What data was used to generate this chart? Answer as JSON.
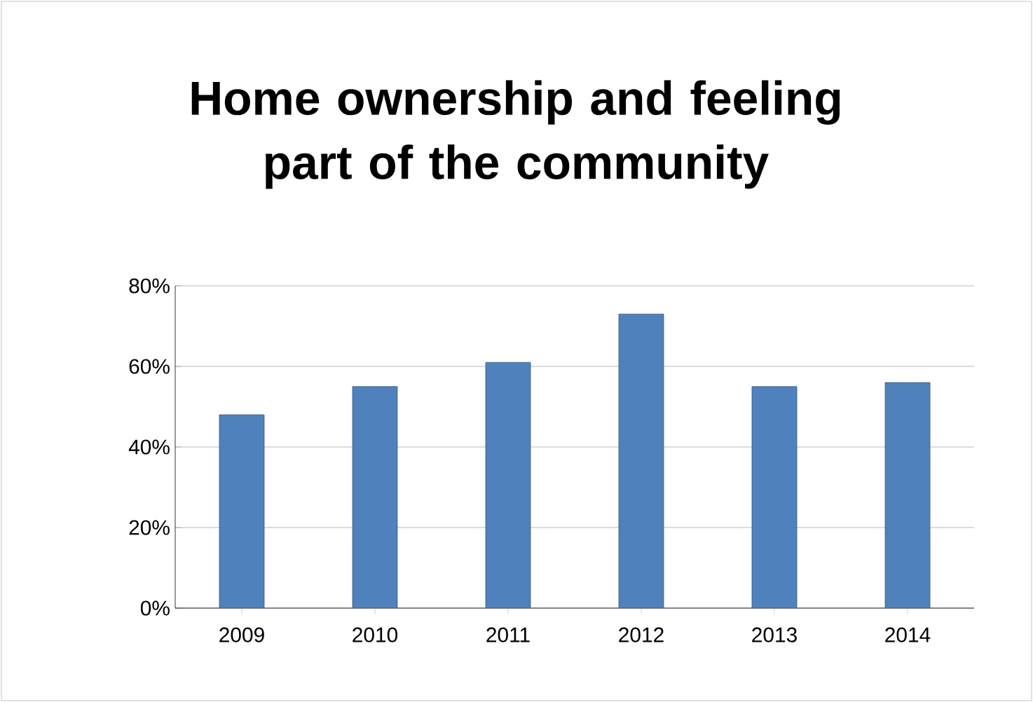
{
  "chart_data": {
    "type": "bar",
    "title": "Home ownership and feeling part of the community",
    "categories": [
      "2009",
      "2010",
      "2011",
      "2012",
      "2013",
      "2014"
    ],
    "values": [
      48,
      55,
      61,
      73,
      55,
      56
    ],
    "color": "#4f81bd",
    "ylim": [
      0,
      80
    ],
    "yticks": [
      {
        "value": 0,
        "label": "0%"
      },
      {
        "value": 20,
        "label": "20%"
      },
      {
        "value": 40,
        "label": "40%"
      },
      {
        "value": 60,
        "label": "60%"
      },
      {
        "value": 80,
        "label": "80%"
      }
    ],
    "grid": "y"
  }
}
